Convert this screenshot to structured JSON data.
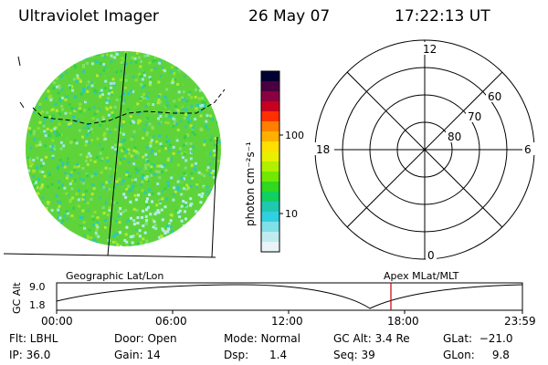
{
  "header": {
    "instrument": "Ultraviolet Imager",
    "date": "26 May 07",
    "time": "17:22:13 UT"
  },
  "colorbar": {
    "unit_label": "photon cm⁻²s⁻¹",
    "tick_labels": [
      "100",
      "10"
    ],
    "colors": [
      "#000033",
      "#4a0040",
      "#8a0040",
      "#c80020",
      "#ff3000",
      "#ff8000",
      "#ffb000",
      "#ffe000",
      "#e8f000",
      "#b0f000",
      "#70e800",
      "#30d820",
      "#10d060",
      "#20c8b0",
      "#30d0e0",
      "#80e0e8",
      "#c0ecf0",
      "#e8f4f8"
    ]
  },
  "polar": {
    "mlt_labels": {
      "top": "12",
      "left": "18",
      "right": "6",
      "bottom": "0"
    },
    "lat_labels": [
      "60",
      "70",
      "80"
    ]
  },
  "altitude_plot": {
    "ylabel": "GC Alt",
    "yticks": [
      "9.0",
      "1.8"
    ],
    "left_title": "Geographic Lat/Lon",
    "right_title": "Apex MLat/MLT",
    "xticks": [
      "00:00",
      "06:00",
      "12:00",
      "18:00",
      "23:59"
    ],
    "current_time_marker_color": "#cc0000"
  },
  "info": {
    "col1": [
      "Flt: LBHL",
      "IP: 36.0"
    ],
    "col2": [
      "Door: Open",
      "Gain: 14"
    ],
    "col3": [
      "Mode: Normal",
      "Dsp:      1.4"
    ],
    "col4": [
      "GC Alt: 3.4 Re",
      "Seq: 39"
    ],
    "col5": [
      "GLat:  −21.0",
      "GLon:     9.8"
    ]
  }
}
